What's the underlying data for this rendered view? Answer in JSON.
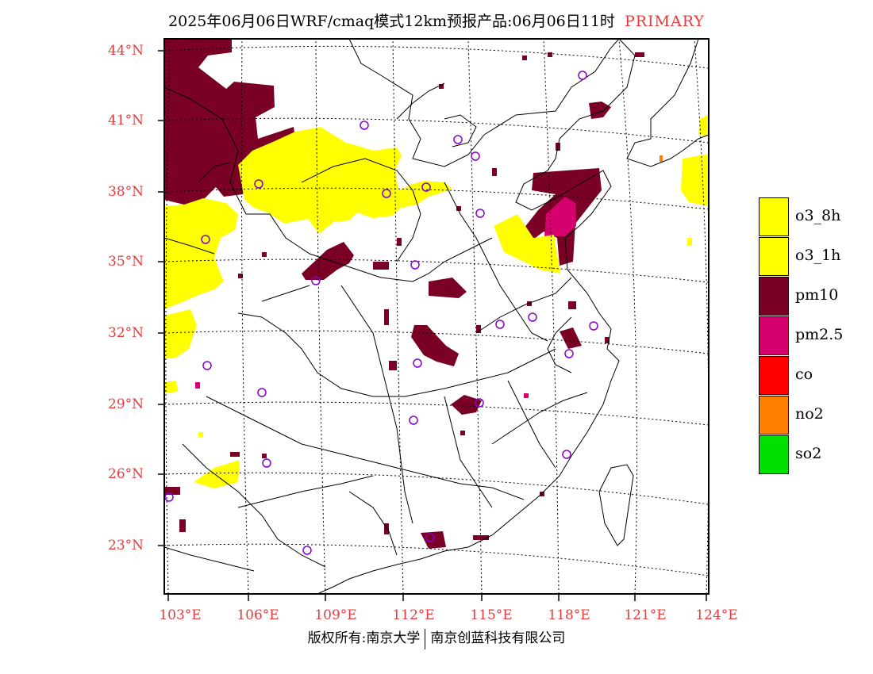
{
  "title": {
    "main": "2025年06月06日WRF/cmaq模式12km预报产品:06月06日11时",
    "tag": "PRIMARY"
  },
  "colors": {
    "label_red": "#e83a3a",
    "o3_8h": "#ffff00",
    "o3_1h": "#ffff00",
    "pm10": "#7a0026",
    "pm25": "#d6006e",
    "co": "#ff0000",
    "no2": "#ff8000",
    "so2": "#00e000",
    "station_circle": "#8800cc"
  },
  "map": {
    "lat_labels": [
      "44°N",
      "41°N",
      "38°N",
      "35°N",
      "32°N",
      "29°N",
      "26°N",
      "23°N"
    ],
    "lon_labels": [
      "103°E",
      "106°E",
      "109°E",
      "112°E",
      "115°E",
      "118°E",
      "121°E",
      "124°E"
    ]
  },
  "legend": [
    {
      "key": "o3_8h",
      "label": "o3_8h"
    },
    {
      "key": "o3_1h",
      "label": "o3_1h"
    },
    {
      "key": "pm10",
      "label": "pm10"
    },
    {
      "key": "pm25",
      "label": "pm2.5"
    },
    {
      "key": "co",
      "label": "co"
    },
    {
      "key": "no2",
      "label": "no2"
    },
    {
      "key": "so2",
      "label": "so2"
    }
  ],
  "footer": {
    "left": "版权所有:南京大学",
    "right": "南京创蓝科技有限公司"
  }
}
